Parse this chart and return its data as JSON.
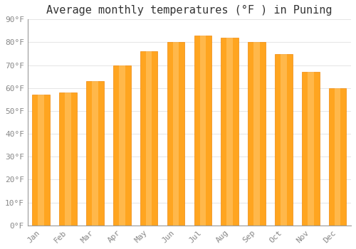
{
  "title": "Average monthly temperatures (°F ) in Puning",
  "months": [
    "Jan",
    "Feb",
    "Mar",
    "Apr",
    "May",
    "Jun",
    "Jul",
    "Aug",
    "Sep",
    "Oct",
    "Nov",
    "Dec"
  ],
  "values": [
    57,
    58,
    63,
    70,
    76,
    80,
    83,
    82,
    80,
    75,
    67,
    60
  ],
  "bar_color_main": "#FFA520",
  "bar_color_edge": "#F0880A",
  "background_color": "#ffffff",
  "ylim": [
    0,
    90
  ],
  "ytick_step": 10,
  "grid_color": "#e0e0e0",
  "title_fontsize": 11,
  "tick_fontsize": 8,
  "tick_label_color": "#888888",
  "bar_width": 0.65
}
